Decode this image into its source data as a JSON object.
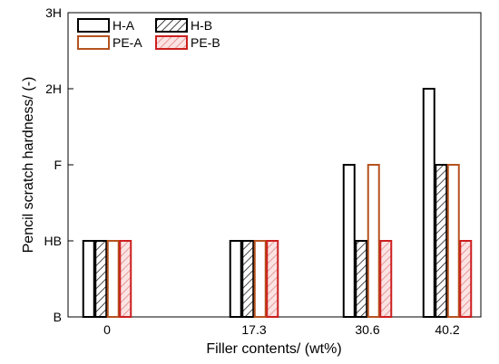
{
  "chart_data": {
    "type": "bar",
    "xlabel": "Filler contents/ (wt%)",
    "ylabel": "Pencil scratch hardness/ (-)",
    "categories": [
      "0",
      "17.3",
      "30.6",
      "40.2"
    ],
    "y_levels": [
      "B",
      "HB",
      "F",
      "2H",
      "3H"
    ],
    "ylim": [
      0,
      4
    ],
    "grid": false,
    "legend_position": "top-left",
    "series": [
      {
        "name": "H-A",
        "values": [
          1,
          1,
          2,
          3
        ],
        "edge": "#000000",
        "fill": "#ffffff",
        "pattern": "none"
      },
      {
        "name": "H-B",
        "values": [
          1,
          1,
          1,
          2
        ],
        "edge": "#000000",
        "fill": "#ffffff",
        "pattern": "hatch"
      },
      {
        "name": "PE-A",
        "values": [
          1,
          1,
          2,
          2
        ],
        "edge": "#b5521f",
        "fill": "#ffffff",
        "pattern": "none"
      },
      {
        "name": "PE-B",
        "values": [
          1,
          1,
          1,
          1
        ],
        "edge": "#cc1f1f",
        "fill": "#fbe3e3",
        "pattern": "hatch"
      }
    ]
  }
}
